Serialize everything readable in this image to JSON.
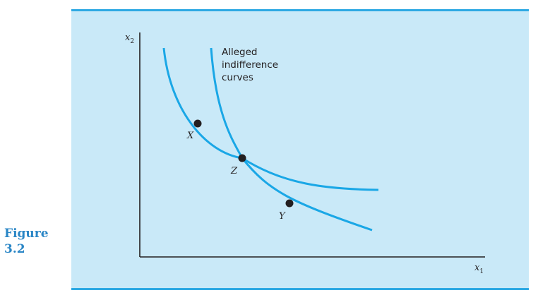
{
  "figure": {
    "label_line1": "Figure",
    "label_line2": "3.2"
  },
  "diagram": {
    "annotation": [
      "Alleged",
      "indifference",
      "curves"
    ],
    "axes": {
      "y": {
        "var": "x",
        "sub": "2"
      },
      "x": {
        "var": "x",
        "sub": "1"
      }
    },
    "points": [
      {
        "label": "X"
      },
      {
        "label": "Z"
      },
      {
        "label": "Y"
      }
    ],
    "colors": {
      "curve": "#1aa7e6",
      "axis": "#231f20",
      "point": "#231f20",
      "panel": "#c9e9f8",
      "figure_label": "#2a86c6"
    }
  }
}
